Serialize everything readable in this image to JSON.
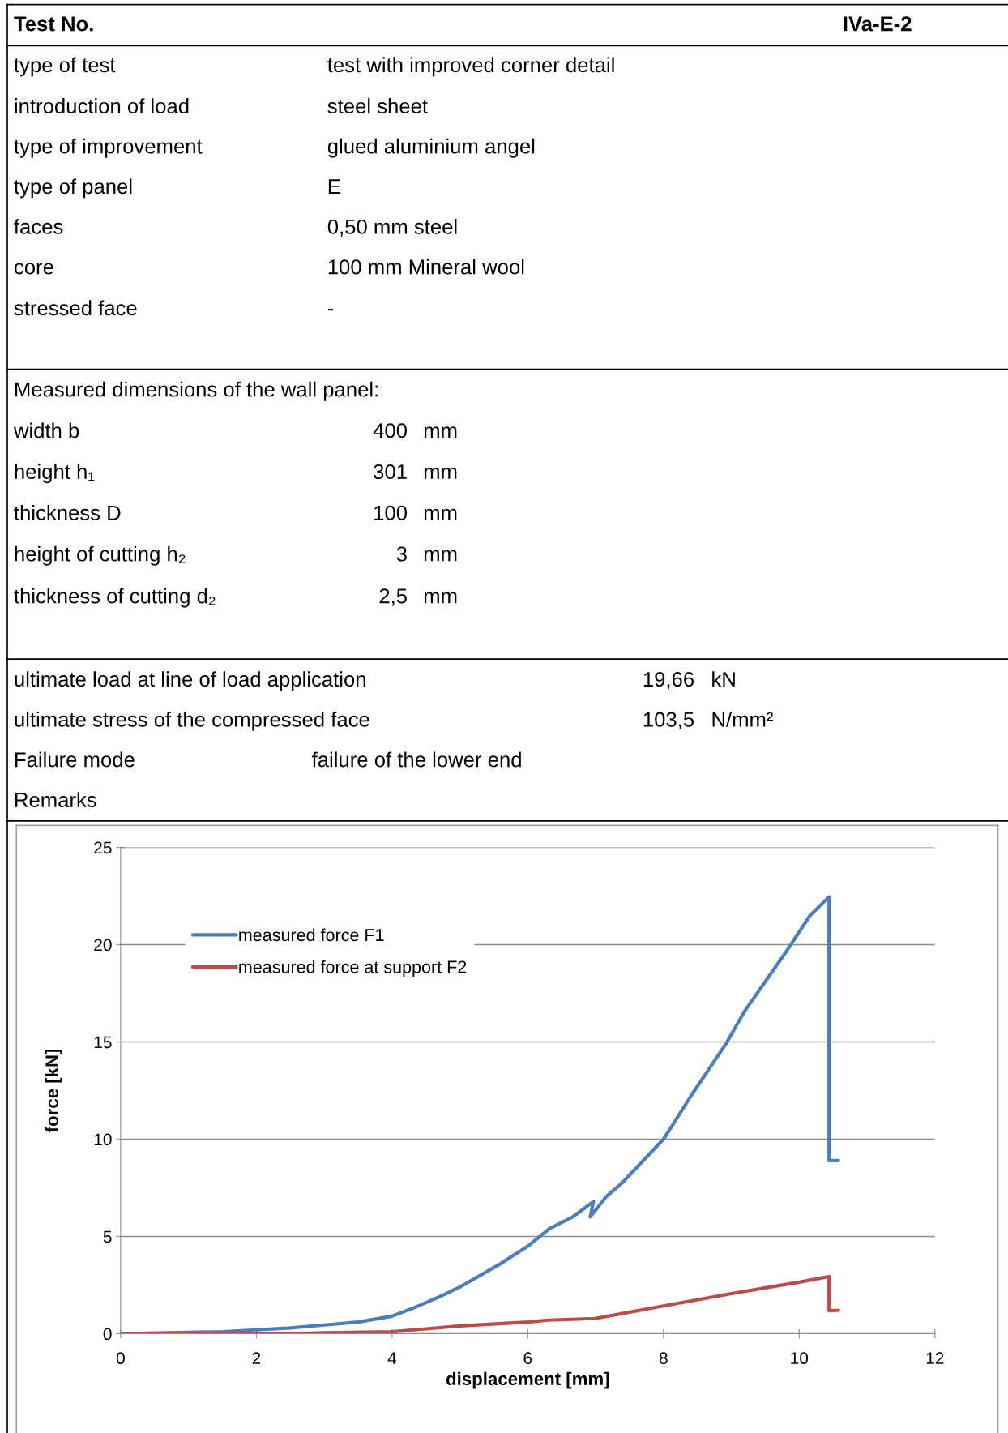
{
  "chart_data": {
    "type": "line",
    "xlabel": "displacement [mm]",
    "ylabel": "force [kN]",
    "xlim": [
      0,
      12
    ],
    "xticks": [
      0,
      2,
      4,
      6,
      8,
      10,
      12
    ],
    "ylim": [
      0,
      25
    ],
    "yticks": [
      0,
      5,
      10,
      15,
      20,
      25
    ],
    "grid": "y",
    "legend": "top left",
    "marker": "none",
    "line_style": "solid",
    "annotations": [
      "Test No.",
      "IVa-E-2",
      "type of test",
      "test with improved corner detail",
      "introduction of load",
      "steel sheet",
      "type of improvement",
      "glued aluminium angel",
      "type of panel",
      "E",
      "faces",
      "0,50 mm steel",
      "core",
      "100 mm Mineral wool",
      "stressed face",
      "-",
      "Measured dimensions of the wall panel:",
      "width b",
      "400",
      "mm",
      "height h₁",
      "301",
      "mm",
      "thickness D",
      "100",
      "mm",
      "height of cutting h₂",
      "3",
      "mm",
      "thickness of cutting d₂",
      "2,5",
      "mm",
      "ultimate load at line of load application",
      "19,66",
      "kN",
      "ultimate stress of the compressed face",
      "103,5",
      "N/mm²",
      "Failure mode",
      "failure of the lower end",
      "Remarks"
    ],
    "series": [
      {
        "name": "measured force F1",
        "color": "#4a7ebb",
        "x": [
          0,
          0.7,
          1.5,
          2,
          2.5,
          3,
          3.5,
          4,
          4.3,
          4.7,
          5,
          5.3,
          5.6,
          6,
          6.32,
          6.66,
          6.97,
          6.92,
          7.16,
          7.39,
          8.0,
          8.13,
          8.41,
          8.92,
          9.2,
          9.82,
          10.16,
          10.44,
          10.44,
          10.44,
          10.58
        ],
        "values": [
          0,
          0.05,
          0.1,
          0.2,
          0.3,
          0.45,
          0.6,
          0.9,
          1.3,
          1.9,
          2.4,
          3.0,
          3.6,
          4.5,
          5.4,
          6.0,
          6.8,
          6.0,
          7.06,
          7.75,
          10.0,
          10.7,
          12.25,
          14.9,
          16.6,
          19.7,
          21.5,
          22.45,
          22.0,
          8.9,
          8.9
        ]
      },
      {
        "name": "measured force at support F2",
        "color": "#be4b48",
        "x": [
          0,
          2.5,
          3,
          4,
          4.5,
          5,
          6,
          6.3,
          6.99,
          8.0,
          9.0,
          10.0,
          10.44,
          10.44,
          10.58
        ],
        "values": [
          0,
          0,
          0.05,
          0.1,
          0.25,
          0.4,
          0.6,
          0.7,
          0.78,
          1.43,
          2.06,
          2.65,
          2.94,
          1.18,
          1.2
        ]
      }
    ]
  }
}
